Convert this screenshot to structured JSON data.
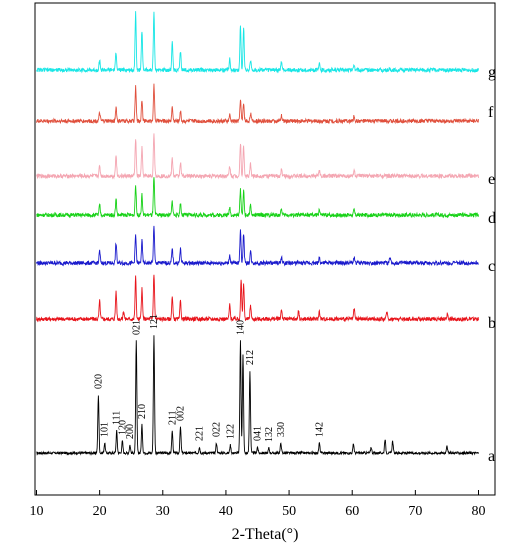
{
  "chart_data": {
    "type": "line",
    "xlabel": "2-Theta(°)",
    "xlim": [
      10,
      80
    ],
    "xticks": [
      10,
      20,
      30,
      40,
      50,
      60,
      70,
      80
    ],
    "y_axis_shown": false,
    "stacked": true,
    "grid": false,
    "series": [
      {
        "name": "a",
        "color": "#000000",
        "peaks": [
          {
            "x": 19.8,
            "h": 58,
            "label": "020"
          },
          {
            "x": 20.8,
            "h": 10,
            "label": "101"
          },
          {
            "x": 22.7,
            "h": 22,
            "label": "111"
          },
          {
            "x": 23.6,
            "h": 12,
            "label": "120"
          },
          {
            "x": 24.8,
            "h": 8,
            "label": "200"
          },
          {
            "x": 25.8,
            "h": 112,
            "label": "021"
          },
          {
            "x": 26.7,
            "h": 28,
            "label": "210"
          },
          {
            "x": 28.6,
            "h": 118,
            "label": "121"
          },
          {
            "x": 31.5,
            "h": 22,
            "label": "211"
          },
          {
            "x": 32.8,
            "h": 26,
            "label": "002"
          },
          {
            "x": 35.8,
            "h": 6,
            "label": "221"
          },
          {
            "x": 38.5,
            "h": 10,
            "label": "022"
          },
          {
            "x": 40.7,
            "h": 8,
            "label": "122"
          },
          {
            "x": 42.3,
            "h": 112,
            "label": "140"
          },
          {
            "x": 42.7,
            "h": 98,
            "label": ""
          },
          {
            "x": 43.8,
            "h": 82,
            "label": "212"
          },
          {
            "x": 45.0,
            "h": 6,
            "label": "041"
          },
          {
            "x": 46.8,
            "h": 5,
            "label": "132"
          },
          {
            "x": 48.7,
            "h": 10,
            "label": "330"
          },
          {
            "x": 54.8,
            "h": 10,
            "label": "142"
          },
          {
            "x": 60.2,
            "h": 9,
            "label": ""
          },
          {
            "x": 63.0,
            "h": 6,
            "label": ""
          },
          {
            "x": 65.2,
            "h": 14,
            "label": ""
          },
          {
            "x": 66.4,
            "h": 12,
            "label": ""
          },
          {
            "x": 75.0,
            "h": 8,
            "label": ""
          }
        ]
      },
      {
        "name": "b",
        "color": "#e8141b",
        "peaks": [
          {
            "x": 20.0,
            "h": 18
          },
          {
            "x": 22.6,
            "h": 28
          },
          {
            "x": 23.8,
            "h": 8
          },
          {
            "x": 25.7,
            "h": 42
          },
          {
            "x": 26.7,
            "h": 30
          },
          {
            "x": 28.6,
            "h": 46
          },
          {
            "x": 31.5,
            "h": 22
          },
          {
            "x": 32.8,
            "h": 18
          },
          {
            "x": 40.6,
            "h": 14
          },
          {
            "x": 42.4,
            "h": 40
          },
          {
            "x": 42.8,
            "h": 36
          },
          {
            "x": 43.9,
            "h": 14
          },
          {
            "x": 48.8,
            "h": 10
          },
          {
            "x": 51.5,
            "h": 8
          },
          {
            "x": 54.8,
            "h": 8
          },
          {
            "x": 60.3,
            "h": 10
          },
          {
            "x": 65.5,
            "h": 8
          },
          {
            "x": 75.1,
            "h": 6
          }
        ]
      },
      {
        "name": "c",
        "color": "#1a1acc",
        "peaks": [
          {
            "x": 20.0,
            "h": 12
          },
          {
            "x": 22.6,
            "h": 20
          },
          {
            "x": 25.7,
            "h": 28
          },
          {
            "x": 26.7,
            "h": 22
          },
          {
            "x": 28.6,
            "h": 36
          },
          {
            "x": 31.5,
            "h": 14
          },
          {
            "x": 32.8,
            "h": 14
          },
          {
            "x": 40.6,
            "h": 8
          },
          {
            "x": 42.3,
            "h": 34
          },
          {
            "x": 42.8,
            "h": 30
          },
          {
            "x": 43.9,
            "h": 12
          },
          {
            "x": 48.8,
            "h": 6
          },
          {
            "x": 54.8,
            "h": 6
          },
          {
            "x": 60.3,
            "h": 6
          },
          {
            "x": 66.0,
            "h": 6
          }
        ]
      },
      {
        "name": "d",
        "color": "#19d219",
        "peaks": [
          {
            "x": 20.0,
            "h": 10
          },
          {
            "x": 22.6,
            "h": 16
          },
          {
            "x": 25.7,
            "h": 30
          },
          {
            "x": 26.7,
            "h": 20
          },
          {
            "x": 28.6,
            "h": 38
          },
          {
            "x": 31.5,
            "h": 14
          },
          {
            "x": 32.8,
            "h": 12
          },
          {
            "x": 40.6,
            "h": 8
          },
          {
            "x": 42.3,
            "h": 26
          },
          {
            "x": 42.8,
            "h": 24
          },
          {
            "x": 43.9,
            "h": 10
          },
          {
            "x": 48.8,
            "h": 6
          },
          {
            "x": 54.8,
            "h": 6
          },
          {
            "x": 60.3,
            "h": 5
          }
        ]
      },
      {
        "name": "e",
        "color": "#f4a6b2",
        "peaks": [
          {
            "x": 20.0,
            "h": 10
          },
          {
            "x": 22.6,
            "h": 22
          },
          {
            "x": 25.7,
            "h": 38
          },
          {
            "x": 26.7,
            "h": 28
          },
          {
            "x": 28.6,
            "h": 44
          },
          {
            "x": 31.5,
            "h": 18
          },
          {
            "x": 32.8,
            "h": 14
          },
          {
            "x": 40.6,
            "h": 10
          },
          {
            "x": 42.3,
            "h": 34
          },
          {
            "x": 42.8,
            "h": 30
          },
          {
            "x": 43.9,
            "h": 12
          },
          {
            "x": 48.8,
            "h": 6
          },
          {
            "x": 54.8,
            "h": 6
          },
          {
            "x": 60.3,
            "h": 6
          }
        ]
      },
      {
        "name": "f",
        "color": "#e0503d",
        "peaks": [
          {
            "x": 20.0,
            "h": 8
          },
          {
            "x": 22.6,
            "h": 14
          },
          {
            "x": 25.7,
            "h": 34
          },
          {
            "x": 26.7,
            "h": 22
          },
          {
            "x": 28.6,
            "h": 36
          },
          {
            "x": 31.5,
            "h": 14
          },
          {
            "x": 32.8,
            "h": 10
          },
          {
            "x": 40.6,
            "h": 6
          },
          {
            "x": 42.3,
            "h": 22
          },
          {
            "x": 42.8,
            "h": 18
          },
          {
            "x": 43.9,
            "h": 8
          },
          {
            "x": 48.8,
            "h": 5
          },
          {
            "x": 60.3,
            "h": 5
          }
        ]
      },
      {
        "name": "g",
        "color": "#19e6e6",
        "peaks": [
          {
            "x": 20.0,
            "h": 10
          },
          {
            "x": 22.6,
            "h": 18
          },
          {
            "x": 25.7,
            "h": 58
          },
          {
            "x": 26.7,
            "h": 40
          },
          {
            "x": 28.6,
            "h": 58
          },
          {
            "x": 31.5,
            "h": 28
          },
          {
            "x": 32.8,
            "h": 18
          },
          {
            "x": 40.6,
            "h": 12
          },
          {
            "x": 42.3,
            "h": 44
          },
          {
            "x": 42.8,
            "h": 44
          },
          {
            "x": 43.9,
            "h": 10
          },
          {
            "x": 48.8,
            "h": 8
          },
          {
            "x": 54.8,
            "h": 6
          },
          {
            "x": 60.3,
            "h": 6
          }
        ]
      }
    ]
  }
}
